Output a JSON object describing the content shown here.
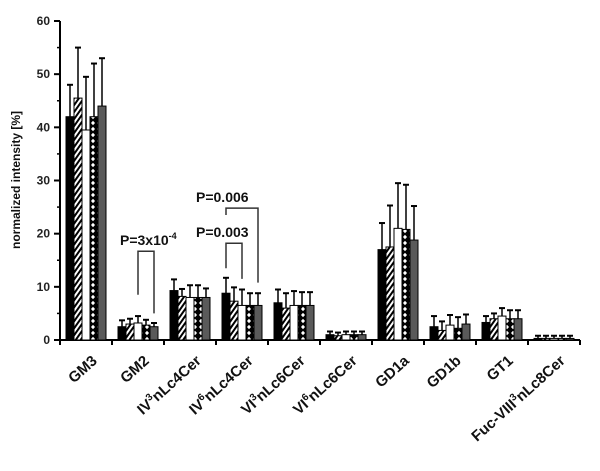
{
  "chart_data": {
    "type": "bar",
    "title": "",
    "xlabel": "",
    "ylabel": "normalized intensity [%]",
    "ylim": [
      0,
      60
    ],
    "yticks": [
      "0",
      "10",
      "20",
      "30",
      "40",
      "50",
      "60"
    ],
    "grid": false,
    "categories": [
      {
        "pre": "GM3",
        "sup": "",
        "post": ""
      },
      {
        "pre": "GM2",
        "sup": "",
        "post": ""
      },
      {
        "pre": "IV",
        "sup": "3",
        "post": "nLc4Cer"
      },
      {
        "pre": "IV",
        "sup": "6",
        "post": "nLc4Cer"
      },
      {
        "pre": "VI",
        "sup": "3",
        "post": "nLc6Cer"
      },
      {
        "pre": "VI",
        "sup": "6",
        "post": "nLc6Cer"
      },
      {
        "pre": "GD1a",
        "sup": "",
        "post": ""
      },
      {
        "pre": "GD1b",
        "sup": "",
        "post": ""
      },
      {
        "pre": "GT1",
        "sup": "",
        "post": ""
      },
      {
        "pre": "Fuc-VIII",
        "sup": "3",
        "post": "nLc8Cer"
      }
    ],
    "series": [
      {
        "fill": "black",
        "values": [
          42,
          2.5,
          9.3,
          8.8,
          7.0,
          1.0,
          17.0,
          2.5,
          3.3,
          0.3
        ],
        "error_top": [
          48,
          3.7,
          11.4,
          11.7,
          9.5,
          1.6,
          22.0,
          4.5,
          4.5,
          0.8
        ]
      },
      {
        "fill": "hatched",
        "values": [
          45.5,
          3.0,
          8.2,
          7.3,
          6.0,
          0.8,
          17.5,
          1.8,
          4.0,
          0.3
        ],
        "error_top": [
          55,
          4.0,
          9.6,
          9.9,
          8.8,
          1.4,
          25.3,
          3.5,
          5.0,
          0.8
        ]
      },
      {
        "fill": "white",
        "values": [
          39.5,
          3.2,
          8.0,
          6.5,
          6.5,
          1.0,
          21.0,
          2.8,
          4.5,
          0.3
        ],
        "error_top": [
          49.5,
          4.5,
          10.3,
          9.5,
          9.2,
          1.6,
          29.5,
          4.7,
          6.0,
          0.8
        ]
      },
      {
        "fill": "dotted",
        "values": [
          42,
          2.8,
          8.0,
          6.5,
          6.5,
          1.0,
          20.8,
          2.2,
          4.0,
          0.3
        ],
        "error_top": [
          52,
          3.8,
          10.3,
          8.8,
          9.0,
          1.6,
          29.2,
          4.3,
          5.6,
          0.8
        ]
      },
      {
        "fill": "gray",
        "values": [
          44,
          2.5,
          8.0,
          6.5,
          6.5,
          1.0,
          18.8,
          3.0,
          4.0,
          0.3
        ],
        "error_top": [
          53,
          3.2,
          9.7,
          8.8,
          9.0,
          1.6,
          25.2,
          4.8,
          5.6,
          0.8
        ]
      }
    ],
    "annotations": [
      {
        "text": "P=3x10-4",
        "main": "P=3x10",
        "sup": "-4",
        "category": 1,
        "from_series": 2,
        "to_series": 4,
        "top": 16.7,
        "left_end": 8.5,
        "right_end": 5.0
      },
      {
        "text": "P=0.003",
        "main": "P=0.003",
        "sup": "",
        "category": 3,
        "from_series": 0,
        "to_series": 2,
        "top": 18.2,
        "left_end": 13.5,
        "right_end": 11.5
      },
      {
        "text": "P=0.006",
        "main": "P=0.006",
        "sup": "",
        "category": 3,
        "from_series": 0,
        "to_series": 4,
        "top": 24.8,
        "left_end": 23.5,
        "right_end": 10.8
      }
    ],
    "colors": {
      "black": "#000000",
      "gray": "#5a5a5a",
      "white": "#ffffff",
      "axis": "#000000"
    }
  }
}
